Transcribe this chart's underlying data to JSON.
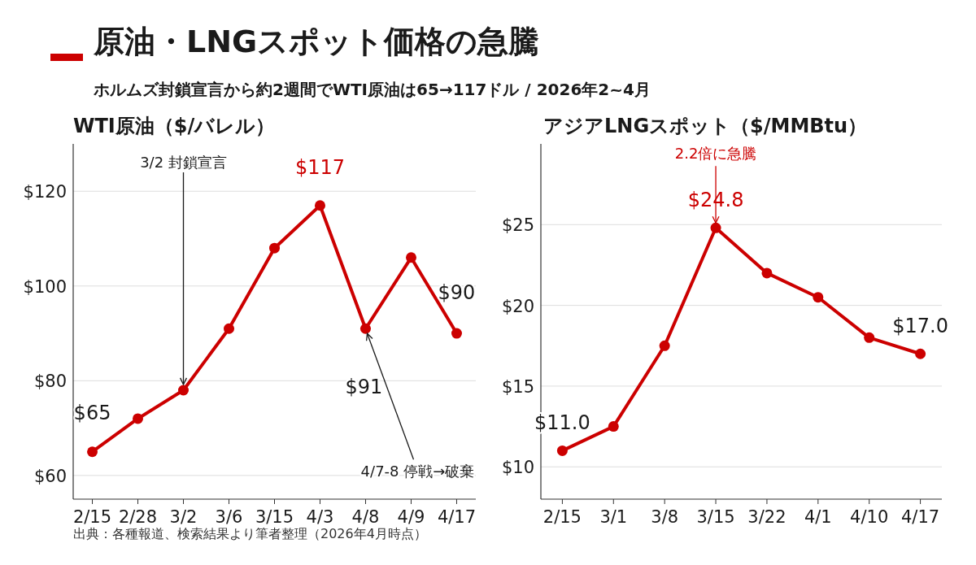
{
  "chart_data": [
    {
      "type": "other",
      "title": "原油・LNGスポット価格の急騰",
      "subtitle": "ホルムズ封鎖宣言から約2週間でWTI原油は65→117ドル / 2026年2~4月",
      "annotations": [
        "出典：各種報道、検索結果より筆者整理（2026年4月時点）"
      ]
    },
    {
      "type": "line",
      "title": "WTI原油（$/バレル）",
      "categories": [
        "2/15",
        "2/28",
        "3/2",
        "3/6",
        "3/15",
        "4/3",
        "4/8",
        "4/9",
        "4/17"
      ],
      "series": [
        {
          "color": "#cc0000",
          "values": [
            65,
            72,
            78,
            91,
            108,
            117,
            91,
            106,
            90
          ]
        }
      ],
      "ylim": [
        55,
        130
      ],
      "yticks": [
        {
          "value": 60,
          "label": "$60"
        },
        {
          "value": 80,
          "label": "$80"
        },
        {
          "value": 100,
          "label": "$100"
        },
        {
          "value": 120,
          "label": "$120"
        }
      ],
      "grid": "y",
      "marker": "circle",
      "line_style": "solid",
      "annotations": [
        {
          "text": "$65",
          "x": "2/15",
          "y": 65
        },
        {
          "text": "$117",
          "x": "4/3",
          "y": 117
        },
        {
          "text": "$91",
          "x": "4/8",
          "y": 91
        },
        {
          "text": "$90",
          "x": "4/17",
          "y": 90
        },
        {
          "text": "3/2 封鎖宣言",
          "x": "3/2",
          "y": 78
        },
        {
          "text": "4/7-8 停戦→破棄",
          "x": "4/8",
          "y": 91
        }
      ]
    },
    {
      "type": "line",
      "title": "アジアLNGスポット（$/MMBtu）",
      "categories": [
        "2/15",
        "3/1",
        "3/8",
        "3/15",
        "3/22",
        "4/1",
        "4/10",
        "4/17"
      ],
      "series": [
        {
          "color": "#cc0000",
          "values": [
            11.0,
            12.5,
            17.5,
            24.8,
            22.0,
            20.5,
            18.0,
            17.0
          ]
        }
      ],
      "ylim": [
        8,
        30
      ],
      "yticks": [
        {
          "value": 10,
          "label": "$10"
        },
        {
          "value": 15,
          "label": "$15"
        },
        {
          "value": 20,
          "label": "$20"
        },
        {
          "value": 25,
          "label": "$25"
        }
      ],
      "grid": "y",
      "marker": "circle",
      "line_style": "solid",
      "annotations": [
        {
          "text": "$11.0",
          "x": "2/15",
          "y": 11.0
        },
        {
          "text": "$24.8",
          "x": "3/15",
          "y": 24.8
        },
        {
          "text": "$17.0",
          "x": "4/17",
          "y": 17.0
        },
        {
          "text": "2.2倍に急騰",
          "x": "3/15",
          "y": 24.8
        }
      ]
    }
  ]
}
